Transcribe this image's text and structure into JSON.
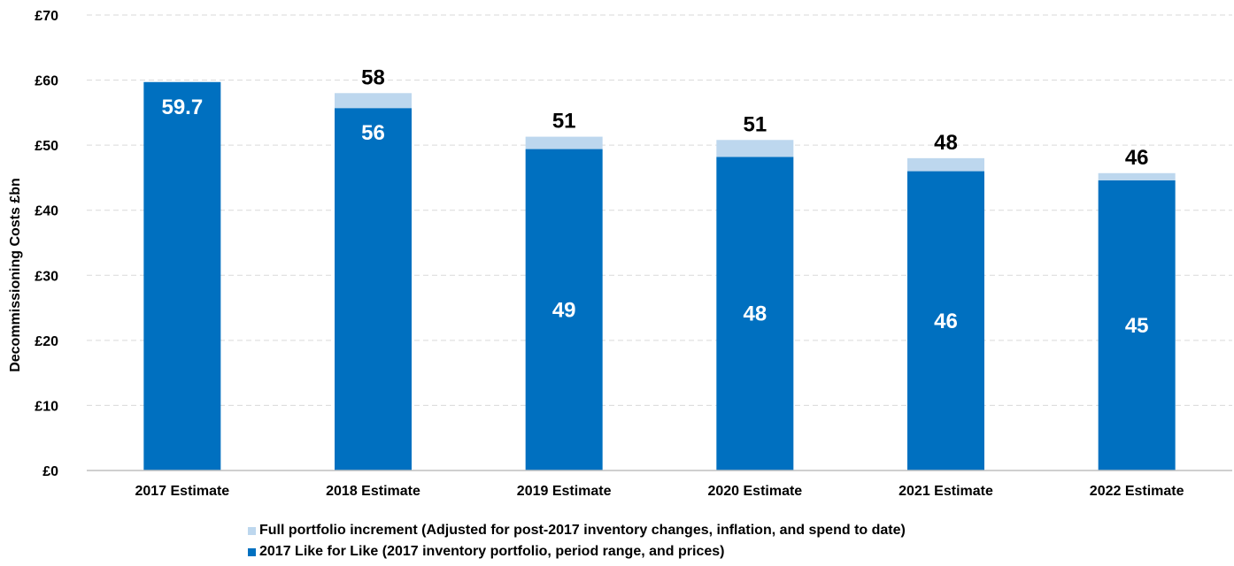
{
  "chart_data": {
    "type": "bar",
    "stacked": true,
    "categories": [
      "2017 Estimate",
      "2018 Estimate",
      "2019 Estimate",
      "2020 Estimate",
      "2021 Estimate",
      "2022 Estimate"
    ],
    "series": [
      {
        "name": "2017 Like for Like (2017 inventory portfolio, period range, and prices)",
        "values": [
          59.7,
          55.7,
          49.4,
          48.2,
          46.0,
          44.6
        ],
        "labels": [
          "59.7",
          "56",
          "49",
          "48",
          "46",
          "45"
        ],
        "color": "#0070c0"
      },
      {
        "name": "Full portfolio increment (Adjusted for post-2017 inventory changes, inflation, and spend to date)",
        "values": [
          0,
          2.3,
          1.9,
          2.6,
          2.0,
          1.1
        ],
        "color": "#bdd7ee"
      }
    ],
    "total_labels": [
      "",
      "58",
      "51",
      "51",
      "48",
      "46"
    ],
    "ylabel": "Decommissioning Costs £bn",
    "xlabel": "",
    "ylim": [
      0,
      70
    ],
    "yticks": [
      0,
      10,
      20,
      30,
      40,
      50,
      60,
      70
    ],
    "ytick_labels": [
      "£0",
      "£10",
      "£20",
      "£30",
      "£40",
      "£50",
      "£60",
      "£70"
    ],
    "grid": true,
    "legend_position": "bottom"
  }
}
